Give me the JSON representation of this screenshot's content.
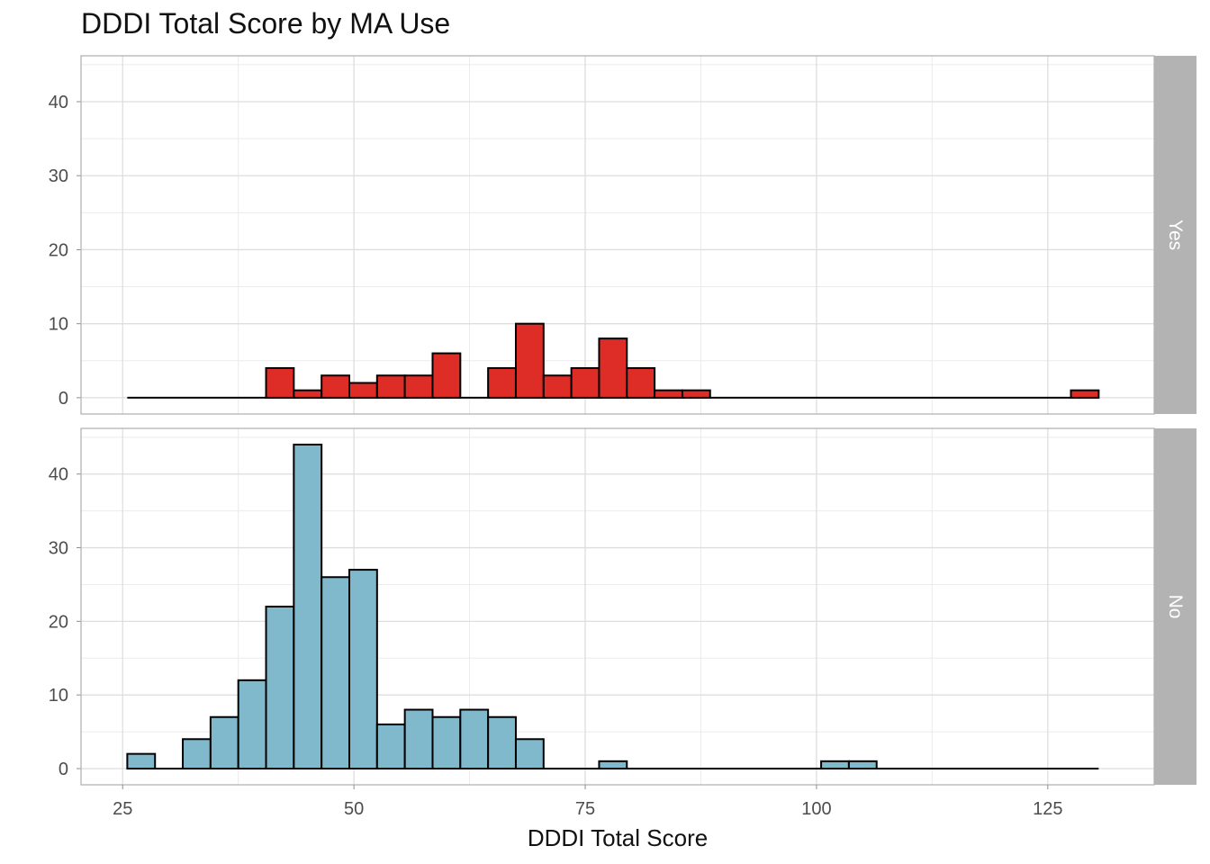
{
  "chart_data": {
    "type": "bar",
    "title": "DDDI Total Score by MA Use",
    "xlabel": "DDDI Total Score",
    "ylabel": "",
    "xlim": [
      20.5,
      136.5
    ],
    "ylim": [
      -2.2,
      46.2
    ],
    "x_ticks": [
      25,
      50,
      75,
      100,
      125
    ],
    "y_ticks": [
      0,
      10,
      20,
      30,
      40
    ],
    "bin_width": 3,
    "bin_start": 25.5,
    "grid": true,
    "facets": [
      {
        "label": "Yes",
        "color": "#DE2D26",
        "values": [
          0,
          0,
          0,
          0,
          0,
          4,
          1,
          3,
          2,
          3,
          3,
          6,
          0,
          4,
          10,
          3,
          4,
          8,
          4,
          1,
          1,
          0,
          0,
          0,
          0,
          0,
          0,
          0,
          0,
          0,
          0,
          0,
          0,
          0,
          1
        ]
      },
      {
        "label": "No",
        "color": "#80B8CC",
        "values": [
          2,
          0,
          4,
          7,
          12,
          22,
          44,
          26,
          27,
          6,
          8,
          7,
          8,
          7,
          4,
          0,
          0,
          1,
          0,
          0,
          0,
          0,
          0,
          0,
          0,
          1,
          1,
          0,
          0,
          0,
          0,
          0,
          0,
          0,
          0
        ]
      }
    ]
  }
}
